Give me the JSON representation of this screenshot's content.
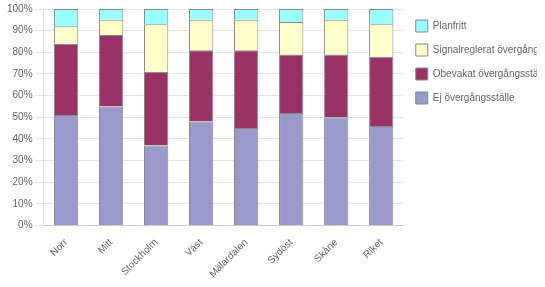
{
  "chart_data": {
    "type": "bar",
    "stacked": true,
    "categories": [
      "Norr",
      "Mitt",
      "Stockholm",
      "Väst",
      "Mälardalen",
      "Sydöst",
      "Skåne",
      "Riket"
    ],
    "series": [
      {
        "name": "Ej övergångsställe",
        "color": "#9999CC",
        "values": [
          51,
          55,
          37,
          48,
          45,
          52,
          50,
          46
        ]
      },
      {
        "name": "Obevakat övergångsställe",
        "color": "#993366",
        "values": [
          33,
          33,
          34,
          33,
          36,
          27,
          29,
          32
        ]
      },
      {
        "name": "Signalreglerat övergångsställe",
        "color": "#FFFFCC",
        "values": [
          8,
          7,
          22,
          14,
          14,
          15,
          16,
          15
        ]
      },
      {
        "name": "Planfritt",
        "color": "#99FFFF",
        "values": [
          8,
          5,
          7,
          5,
          5,
          6,
          5,
          7
        ]
      }
    ],
    "ylim": [
      0,
      100
    ],
    "yticks": [
      {
        "value": 0,
        "label": "0%"
      },
      {
        "value": 10,
        "label": "10%"
      },
      {
        "value": 20,
        "label": "20%"
      },
      {
        "value": 30,
        "label": "30%"
      },
      {
        "value": 40,
        "label": "40%"
      },
      {
        "value": 50,
        "label": "50%"
      },
      {
        "value": 60,
        "label": "60%"
      },
      {
        "value": 70,
        "label": "70%"
      },
      {
        "value": 80,
        "label": "80%"
      },
      {
        "value": 90,
        "label": "90%"
      },
      {
        "value": 100,
        "label": "100%"
      }
    ],
    "grid": true,
    "legend": "right"
  }
}
